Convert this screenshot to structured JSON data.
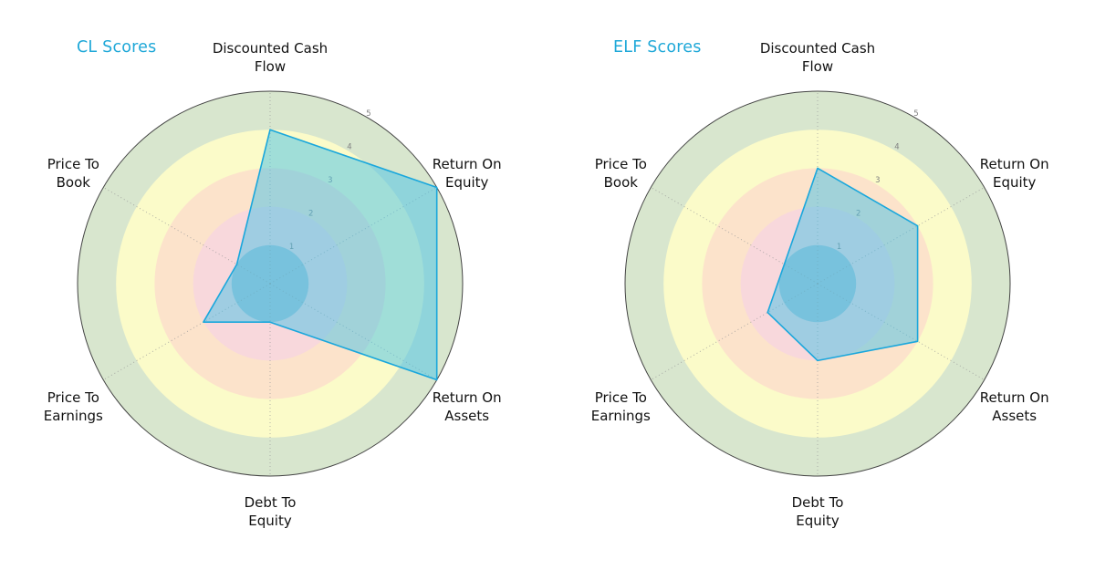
{
  "figure": {
    "background": "#ffffff"
  },
  "chart_data": [
    {
      "type": "radar",
      "title": "CL Scores",
      "title_color": "#1fa8d8",
      "categories": [
        "Discounted Cash\nFlow",
        "Return On\nEquity",
        "Return On\nAssets",
        "Debt To\nEquity",
        "Price To\nEarnings",
        "Price To\nBook"
      ],
      "values": [
        4,
        5,
        5,
        1,
        2,
        1
      ],
      "r_ticks": [
        1,
        2,
        3,
        4,
        5
      ],
      "r_min": 0,
      "r_max": 5,
      "ring_colors": [
        "#aac2d3",
        "#f8d8dc",
        "#fce3cb",
        "#fbfbc9",
        "#d8e6ce"
      ],
      "series_fill": "#45c1e8",
      "series_stroke": "#1aa7dc",
      "grid": "dotted-spokes",
      "legend": "none"
    },
    {
      "type": "radar",
      "title": "ELF Scores",
      "title_color": "#1fa8d8",
      "categories": [
        "Discounted Cash\nFlow",
        "Return On\nEquity",
        "Return On\nAssets",
        "Debt To\nEquity",
        "Price To\nEarnings",
        "Price To\nBook"
      ],
      "values": [
        3,
        3,
        3,
        2,
        1.5,
        1
      ],
      "r_ticks": [
        1,
        2,
        3,
        4,
        5
      ],
      "r_min": 0,
      "r_max": 5,
      "ring_colors": [
        "#aac2d3",
        "#f8d8dc",
        "#fce3cb",
        "#fbfbc9",
        "#d8e6ce"
      ],
      "series_fill": "#45c1e8",
      "series_stroke": "#1aa7dc",
      "grid": "dotted-spokes",
      "legend": "none"
    }
  ]
}
